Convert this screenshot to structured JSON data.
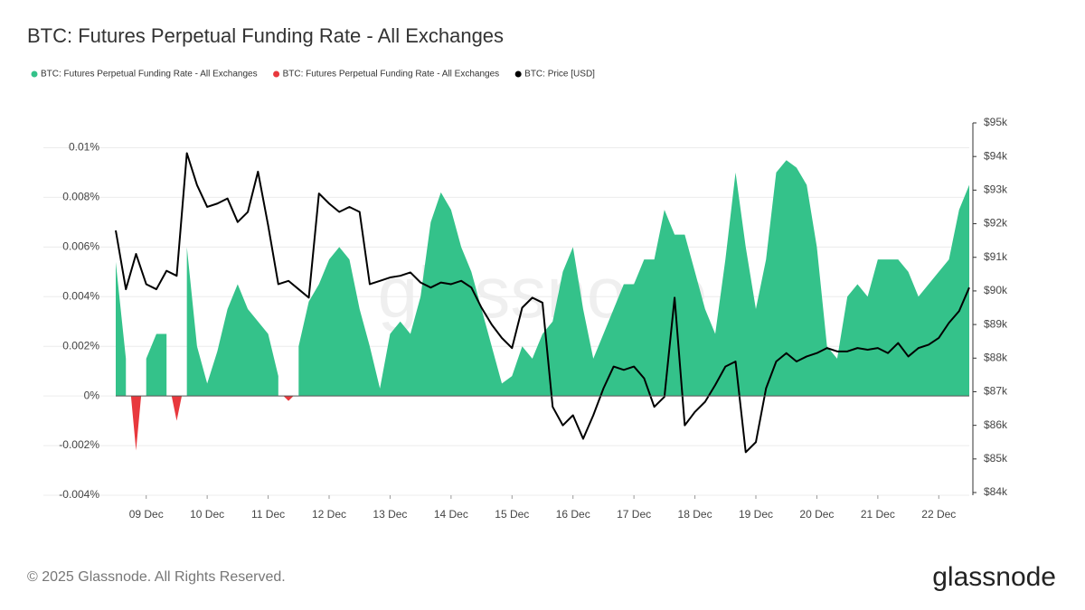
{
  "chart_data": {
    "type": "area",
    "title": "BTC: Futures Perpetual Funding Rate - All Exchanges",
    "watermark": "glassnode",
    "categories": [
      null,
      null,
      null,
      "09 Dec",
      null,
      null,
      null,
      null,
      null,
      "10 Dec",
      null,
      null,
      null,
      null,
      null,
      "11 Dec",
      null,
      null,
      null,
      null,
      null,
      "12 Dec",
      null,
      null,
      null,
      null,
      null,
      "13 Dec",
      null,
      null,
      null,
      null,
      null,
      "14 Dec",
      null,
      null,
      null,
      null,
      null,
      "15 Dec",
      null,
      null,
      null,
      null,
      null,
      "16 Dec",
      null,
      null,
      null,
      null,
      null,
      "17 Dec",
      null,
      null,
      null,
      null,
      null,
      "18 Dec",
      null,
      null,
      null,
      null,
      null,
      "19 Dec",
      null,
      null,
      null,
      null,
      null,
      "20 Dec",
      null,
      null,
      null,
      null,
      null,
      "21 Dec",
      null,
      null,
      null,
      null,
      null,
      "22 Dec",
      null,
      null,
      null
    ],
    "series": [
      {
        "name": "BTC: Futures Perpetual Funding Rate - All Exchanges",
        "color": "#34c28a",
        "type": "area",
        "values": [
          0.0054,
          0.0015,
          null,
          0.0015,
          0.0025,
          0.0025,
          null,
          0.006,
          0.002,
          0.0005,
          0.0018,
          0.0035,
          0.0045,
          0.0035,
          0.003,
          0.0025,
          0.0008,
          null,
          0.002,
          0.0038,
          0.0045,
          0.0055,
          0.006,
          0.0055,
          0.0035,
          0.002,
          0.0003,
          0.0025,
          0.003,
          0.0025,
          0.004,
          0.007,
          0.0082,
          0.0075,
          0.006,
          0.005,
          0.0035,
          0.002,
          0.0005,
          0.0008,
          0.002,
          0.0015,
          0.0025,
          0.003,
          0.005,
          0.006,
          0.0035,
          0.0015,
          0.0025,
          0.0035,
          0.0045,
          0.0045,
          0.0055,
          0.0055,
          0.0075,
          0.0065,
          0.0065,
          0.005,
          0.0035,
          0.0025,
          0.0055,
          0.009,
          0.006,
          0.0035,
          0.0055,
          0.009,
          0.0095,
          0.0092,
          0.0085,
          0.006,
          0.002,
          0.0015,
          0.004,
          0.0045,
          0.004,
          0.0055,
          0.0055,
          0.0055,
          0.005,
          0.004,
          0.0045,
          0.005,
          0.0055,
          0.0075,
          0.0085
        ]
      },
      {
        "name": "BTC: Futures Perpetual Funding Rate - All Exchanges",
        "color": "#e8383d",
        "type": "area",
        "values": [
          null,
          null,
          -0.0022,
          null,
          null,
          null,
          -0.001,
          null,
          null,
          null,
          null,
          null,
          null,
          null,
          null,
          null,
          null,
          -0.0002,
          null,
          null,
          null,
          null,
          null,
          null,
          null,
          null,
          null,
          null,
          null,
          null,
          null,
          null,
          null,
          null,
          null,
          null,
          null,
          null,
          null,
          null,
          null,
          null,
          null,
          null,
          null,
          null,
          null,
          null,
          null,
          null,
          null,
          null,
          null,
          null,
          null,
          null,
          null,
          null,
          null,
          null,
          null,
          null,
          null,
          null,
          null,
          null,
          null,
          null,
          null,
          null,
          null,
          null,
          null,
          null,
          null,
          null,
          null,
          null,
          null,
          null,
          null,
          null,
          null,
          null,
          null
        ]
      },
      {
        "name": "BTC: Price [USD]",
        "color": "#000000",
        "type": "line",
        "axis": "y2",
        "values": [
          91800,
          90050,
          91100,
          90200,
          90050,
          90600,
          90450,
          94100,
          93150,
          92500,
          92600,
          92750,
          92050,
          92350,
          93550,
          91950,
          90200,
          90300,
          90050,
          89800,
          92900,
          92600,
          92350,
          92500,
          92350,
          90200,
          90300,
          90400,
          90450,
          90550,
          90250,
          90100,
          90250,
          90200,
          90300,
          90100,
          89500,
          89000,
          88600,
          88300,
          89500,
          89800,
          89650,
          86550,
          86000,
          86300,
          85600,
          86300,
          87100,
          87750,
          87650,
          87750,
          87400,
          86550,
          86850,
          89800,
          86000,
          86400,
          86700,
          87200,
          87750,
          87900,
          85200,
          85500,
          87100,
          87900,
          88150,
          87900,
          88050,
          88150,
          88300,
          88200,
          88200,
          88300,
          88250,
          88300,
          88150,
          88450,
          88050,
          88300,
          88400,
          88600,
          89050,
          89400,
          90100
        ]
      }
    ],
    "ylim": [
      -0.004,
      0.011
    ],
    "yticks": [
      {
        "value": -0.004,
        "label": "-0.004%"
      },
      {
        "value": -0.002,
        "label": "-0.002%"
      },
      {
        "value": 0,
        "label": "0%"
      },
      {
        "value": 0.002,
        "label": "0.002%"
      },
      {
        "value": 0.004,
        "label": "0.004%"
      },
      {
        "value": 0.006,
        "label": "0.006%"
      },
      {
        "value": 0.008,
        "label": "0.008%"
      },
      {
        "value": 0.01,
        "label": "0.01%"
      }
    ],
    "y2lim": [
      83920,
      95000
    ],
    "y2ticks": [
      {
        "value": 84000,
        "label": "$84k"
      },
      {
        "value": 85000,
        "label": "$85k"
      },
      {
        "value": 86000,
        "label": "$86k"
      },
      {
        "value": 87000,
        "label": "$87k"
      },
      {
        "value": 88000,
        "label": "$88k"
      },
      {
        "value": 89000,
        "label": "$89k"
      },
      {
        "value": 90000,
        "label": "$90k"
      },
      {
        "value": 91000,
        "label": "$91k"
      },
      {
        "value": 92000,
        "label": "$92k"
      },
      {
        "value": 93000,
        "label": "$93k"
      },
      {
        "value": 94000,
        "label": "$94k"
      },
      {
        "value": 95000,
        "label": "$95k"
      }
    ],
    "grid": true,
    "legend": "top-left"
  },
  "footer": {
    "copyright": "© 2025 Glassnode. All Rights Reserved.",
    "logo": "glassnode"
  }
}
